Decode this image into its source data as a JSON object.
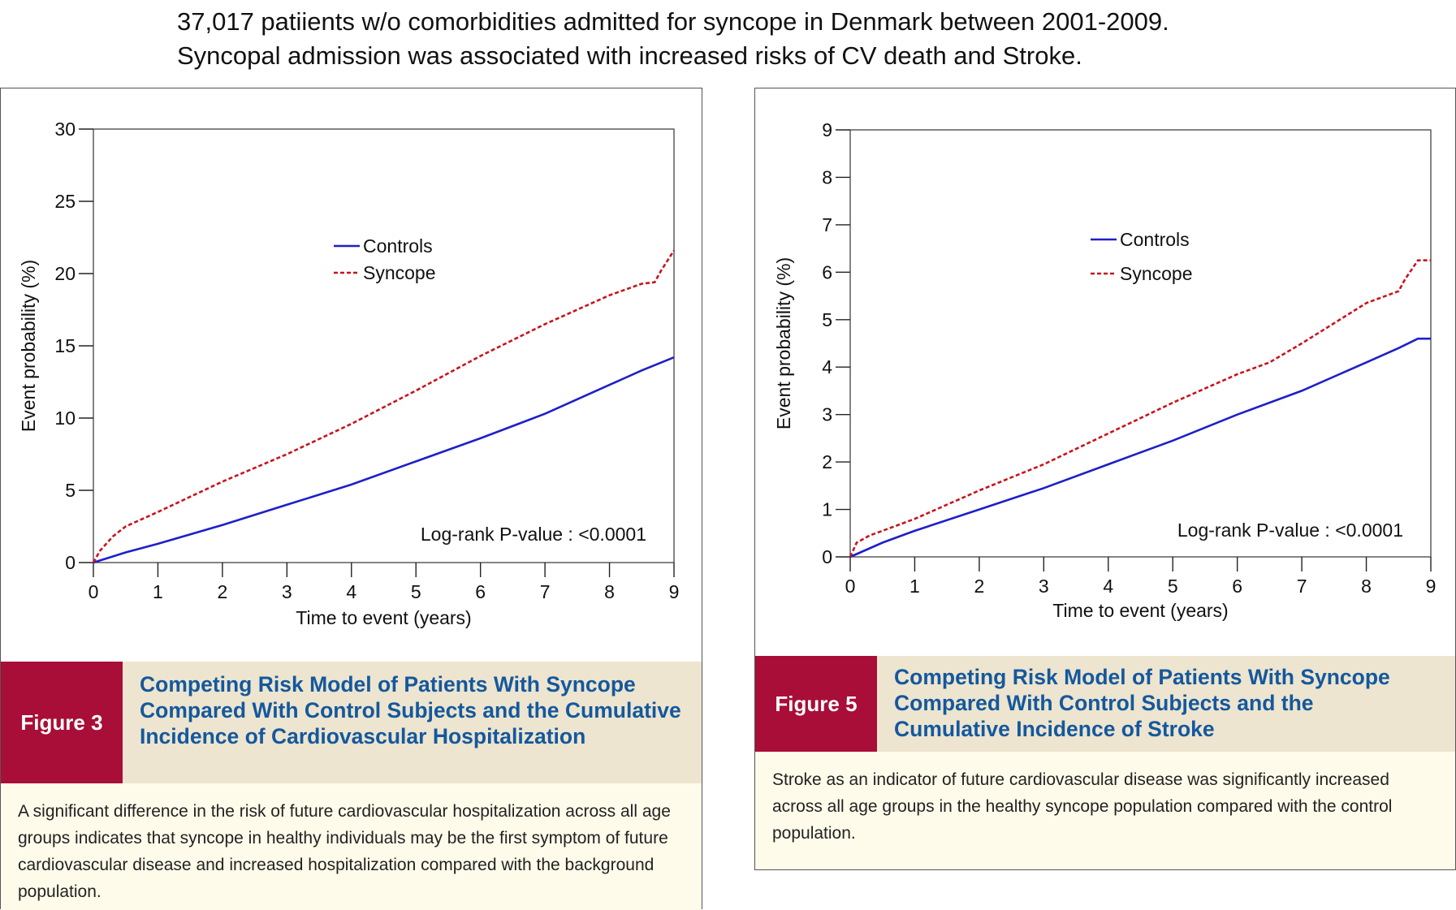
{
  "header": {
    "line1": "37,017 patiients  w/o comorbidities admitted for syncope in Denmark between 2001-2009.",
    "line2": "Syncopal admission was associated with increased risks of CV death and Stroke."
  },
  "colors": {
    "controls": "#1f1fc8",
    "syncope": "#c8141e",
    "figure_label_bg": "#a80e37",
    "title_blue": "#14589e"
  },
  "chart_data": [
    {
      "type": "line",
      "title": "",
      "xlabel": "Time to event (years)",
      "ylabel": "Event probability (%)",
      "xlim": [
        0,
        9
      ],
      "ylim": [
        0,
        30
      ],
      "xticks": [
        0,
        1,
        2,
        3,
        4,
        5,
        6,
        7,
        8,
        9
      ],
      "yticks": [
        0,
        5,
        10,
        15,
        20,
        25,
        30
      ],
      "legend": {
        "placement": "top-center",
        "entries": [
          "Controls",
          "Syncope"
        ]
      },
      "annotation": "Log-rank P-value : <0.0001",
      "series": [
        {
          "name": "Controls",
          "style": "solid",
          "x": [
            0,
            0.5,
            1,
            2,
            3,
            4,
            5,
            6,
            7,
            8,
            8.5,
            9
          ],
          "values": [
            0,
            0.7,
            1.3,
            2.6,
            4.0,
            5.4,
            7.0,
            8.6,
            10.3,
            12.3,
            13.3,
            14.2
          ]
        },
        {
          "name": "Syncope",
          "style": "dashed",
          "x": [
            0,
            0.1,
            0.3,
            0.5,
            1,
            2,
            3,
            4,
            5,
            6,
            7,
            8,
            8.5,
            8.7,
            8.8,
            9
          ],
          "values": [
            0,
            0.8,
            1.8,
            2.5,
            3.5,
            5.6,
            7.5,
            9.6,
            11.9,
            14.3,
            16.5,
            18.5,
            19.3,
            19.4,
            20.2,
            21.6
          ]
        }
      ],
      "figure": {
        "label": "Figure 3",
        "title": "Competing Risk Model of Patients With Syncope Compared With Control Subjects and the Cumulative Incidence of Cardiovascular Hospitalization",
        "caption": "A significant difference in the risk of future cardiovascular hospitalization across all age groups indicates that syncope in healthy individuals may be the first symptom of future cardiovascular disease and increased hospitalization compared with the background population."
      }
    },
    {
      "type": "line",
      "title": "",
      "xlabel": "Time to event (years)",
      "ylabel": "Event probability (%)",
      "xlim": [
        0,
        9
      ],
      "ylim": [
        0,
        9
      ],
      "xticks": [
        0,
        1,
        2,
        3,
        4,
        5,
        6,
        7,
        8,
        9
      ],
      "yticks": [
        0,
        1,
        2,
        3,
        4,
        5,
        6,
        7,
        8,
        9
      ],
      "legend": {
        "placement": "top-center",
        "entries": [
          "Controls",
          "Syncope"
        ]
      },
      "annotation": "Log-rank P-value : <0.0001",
      "series": [
        {
          "name": "Controls",
          "style": "solid",
          "x": [
            0,
            0.5,
            1,
            2,
            3,
            4,
            5,
            6,
            7,
            8,
            8.5,
            8.8,
            9
          ],
          "values": [
            0,
            0.3,
            0.55,
            1.0,
            1.45,
            1.95,
            2.45,
            3.0,
            3.5,
            4.1,
            4.4,
            4.6,
            4.6
          ]
        },
        {
          "name": "Syncope",
          "style": "dashed",
          "x": [
            0,
            0.1,
            0.3,
            0.5,
            1,
            2,
            3,
            4,
            5,
            6,
            6.5,
            7,
            8,
            8.5,
            8.6,
            8.8,
            9
          ],
          "values": [
            0,
            0.3,
            0.45,
            0.55,
            0.8,
            1.4,
            1.95,
            2.6,
            3.25,
            3.85,
            4.1,
            4.5,
            5.35,
            5.6,
            5.85,
            6.25,
            6.25
          ]
        }
      ],
      "figure": {
        "label": "Figure 5",
        "title": "Competing Risk Model of Patients With Syncope Compared With Control Subjects and the Cumulative Incidence of Stroke",
        "caption": "Stroke as an indicator of future cardiovascular disease was significantly increased across all age groups in the healthy syncope population compared with the control population."
      }
    }
  ]
}
